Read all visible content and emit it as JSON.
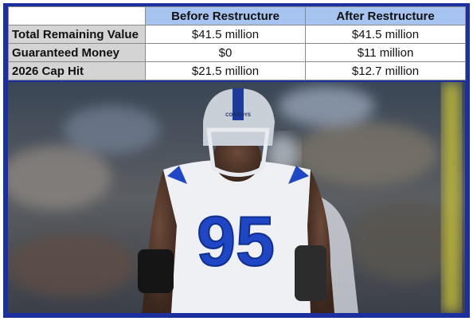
{
  "table": {
    "columns": [
      "Before Restructure",
      "After Restructure"
    ],
    "rows": [
      [
        "Total Remaining Value",
        "$41.5 million",
        "$41.5 million"
      ],
      [
        "Guaranteed Money",
        "$0",
        "$11 million"
      ],
      [
        "2026 Cap Hit",
        "$21.5 million",
        "$12.7 million"
      ]
    ]
  },
  "image": {
    "jersey_number": "95",
    "helmet_text": "COWBOYS"
  }
}
